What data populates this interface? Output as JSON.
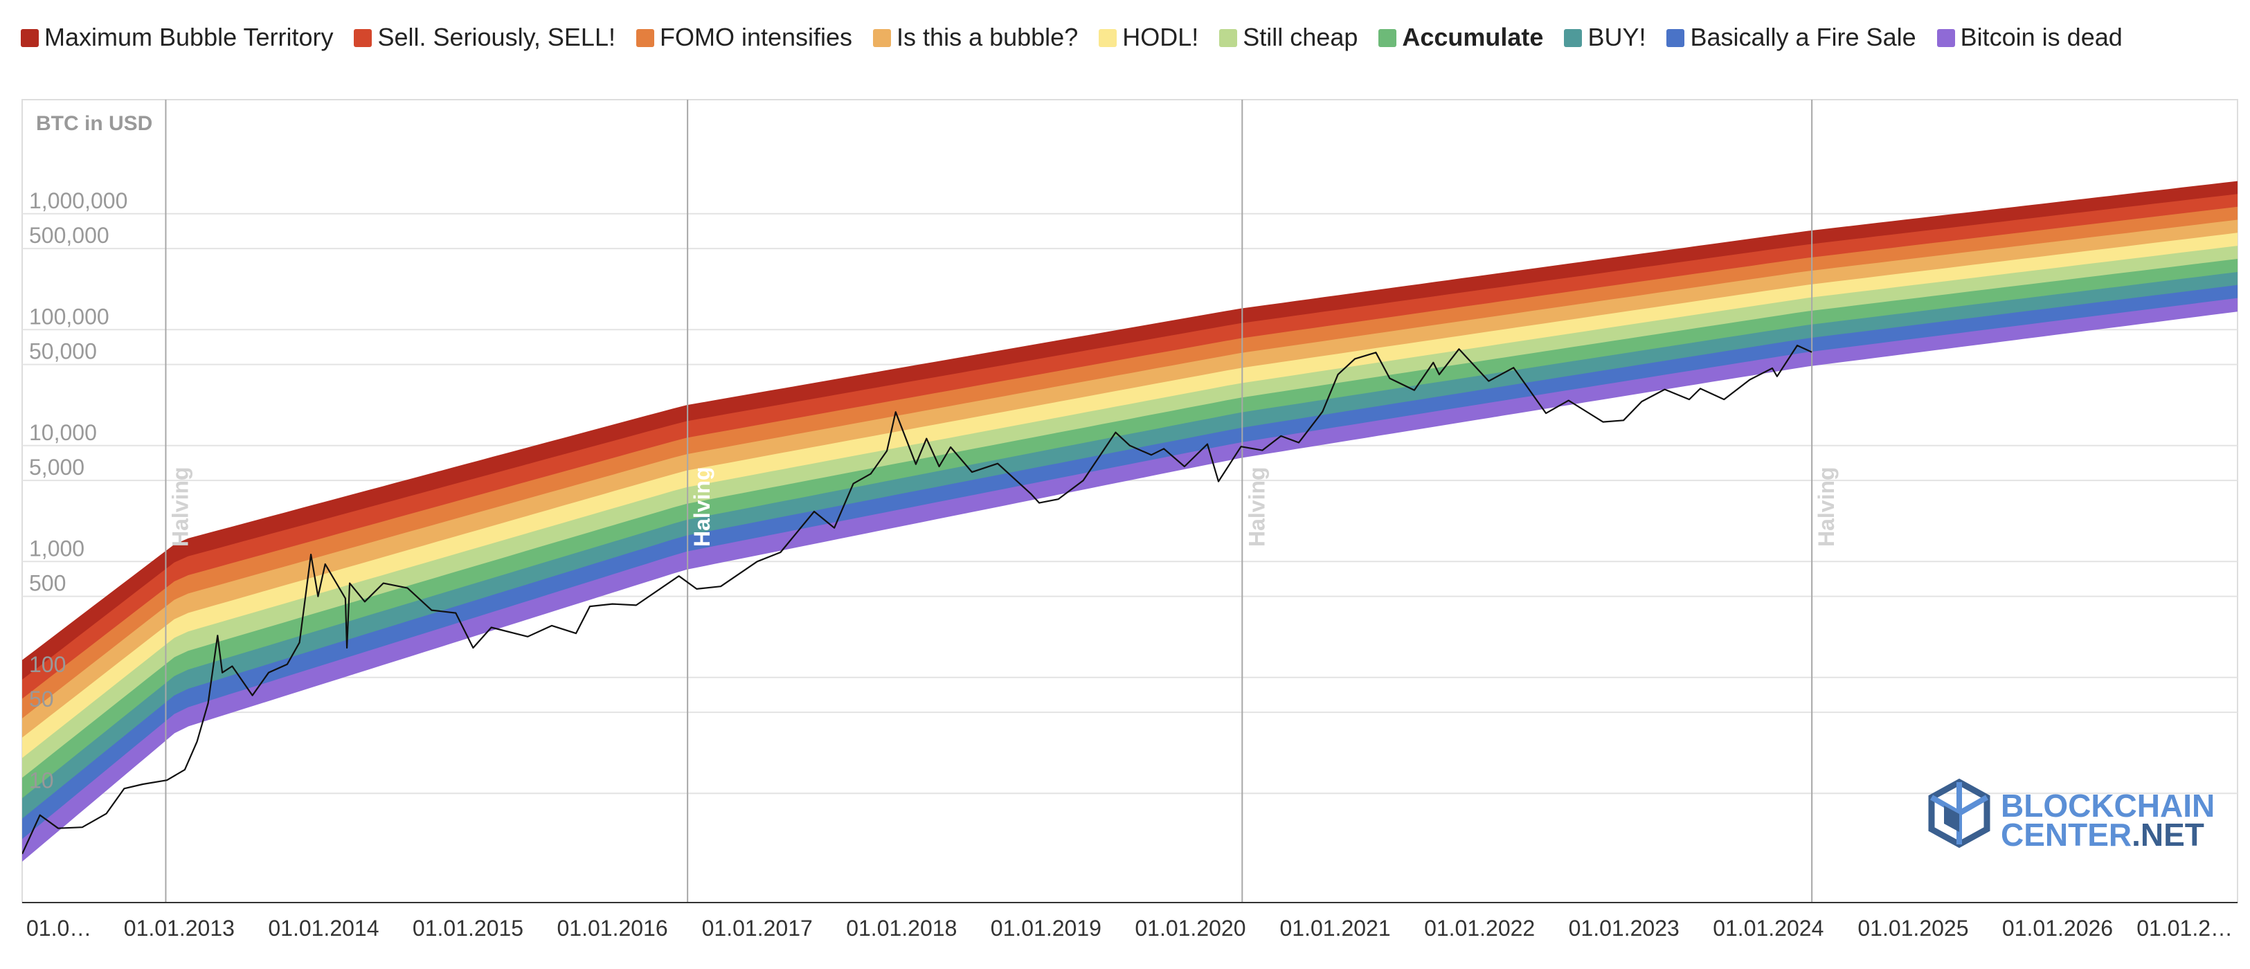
{
  "chart_data": {
    "type": "area",
    "title": "",
    "ylabel": "BTC in USD",
    "y_scale": "log",
    "x_range": [
      "2011-12-01",
      "2027-04-01"
    ],
    "y_ticks": [
      {
        "value": 10,
        "label": "10"
      },
      {
        "value": 50,
        "label": "50"
      },
      {
        "value": 100,
        "label": "100"
      },
      {
        "value": 500,
        "label": "500"
      },
      {
        "value": 1000,
        "label": "1,000"
      },
      {
        "value": 5000,
        "label": "5,000"
      },
      {
        "value": 10000,
        "label": "10,000"
      },
      {
        "value": 50000,
        "label": "50,000"
      },
      {
        "value": 100000,
        "label": "100,000"
      },
      {
        "value": 500000,
        "label": "500,000"
      },
      {
        "value": 1000000,
        "label": "1,000,000"
      }
    ],
    "x_ticks": [
      {
        "date": "2012-01-01",
        "label": "01.0…"
      },
      {
        "date": "2013-01-01",
        "label": "01.01.2013"
      },
      {
        "date": "2014-01-01",
        "label": "01.01.2014"
      },
      {
        "date": "2015-01-01",
        "label": "01.01.2015"
      },
      {
        "date": "2016-01-01",
        "label": "01.01.2016"
      },
      {
        "date": "2017-01-01",
        "label": "01.01.2017"
      },
      {
        "date": "2018-01-01",
        "label": "01.01.2018"
      },
      {
        "date": "2019-01-01",
        "label": "01.01.2019"
      },
      {
        "date": "2020-01-01",
        "label": "01.01.2020"
      },
      {
        "date": "2021-01-01",
        "label": "01.01.2021"
      },
      {
        "date": "2022-01-01",
        "label": "01.01.2022"
      },
      {
        "date": "2023-01-01",
        "label": "01.01.2023"
      },
      {
        "date": "2024-01-01",
        "label": "01.01.2024"
      },
      {
        "date": "2025-01-01",
        "label": "01.01.2025"
      },
      {
        "date": "2026-01-01",
        "label": "01.01.2026"
      },
      {
        "date": "2027-01-01",
        "label": "01.01.2…"
      }
    ],
    "bands": [
      {
        "name": "Maximum Bubble Territory",
        "color": "#b22a1e",
        "bold": false
      },
      {
        "name": "Sell. Seriously, SELL!",
        "color": "#d4472c",
        "bold": false
      },
      {
        "name": "FOMO intensifies",
        "color": "#e47f3e",
        "bold": false
      },
      {
        "name": "Is this a bubble?",
        "color": "#edb060",
        "bold": false
      },
      {
        "name": "HODL!",
        "color": "#fbe88f",
        "bold": false
      },
      {
        "name": "Still cheap",
        "color": "#bcd98f",
        "bold": false
      },
      {
        "name": "Accumulate",
        "color": "#6dba78",
        "bold": true
      },
      {
        "name": "BUY!",
        "color": "#4f9a9a",
        "bold": false
      },
      {
        "name": "Basically a Fire Sale",
        "color": "#4a73c7",
        "bold": false
      },
      {
        "name": "Bitcoin is dead",
        "color": "#8f6ad6",
        "bold": false
      }
    ],
    "band_boundaries": [
      {
        "date": "2011-12-01",
        "values": [
          140,
          95,
          65,
          44,
          30,
          20,
          13.5,
          9,
          6,
          4,
          2.6
        ]
      },
      {
        "date": "2013-01-01",
        "values": [
          1500,
          1050,
          720,
          500,
          340,
          235,
          160,
          110,
          75,
          52,
          36
        ]
      },
      {
        "date": "2016-07-01",
        "values": [
          22000,
          16000,
          11500,
          8300,
          6000,
          4300,
          3100,
          2250,
          1650,
          1200,
          850
        ]
      },
      {
        "date": "2020-05-01",
        "values": [
          150000,
          112000,
          83000,
          62000,
          46000,
          34000,
          25500,
          19000,
          14000,
          10500,
          7800
        ]
      },
      {
        "date": "2024-04-01",
        "values": [
          700000,
          535000,
          410000,
          315000,
          240000,
          185000,
          142000,
          108000,
          83000,
          63000,
          48000
        ]
      },
      {
        "date": "2027-04-01",
        "values": [
          1900000,
          1470000,
          1140000,
          880000,
          680000,
          525000,
          405000,
          312000,
          241000,
          186000,
          144000
        ]
      }
    ],
    "halvings": [
      {
        "date": "2012-11-28",
        "label": "Halving"
      },
      {
        "date": "2016-07-09",
        "label": "Halving"
      },
      {
        "date": "2020-05-11",
        "label": "Halving"
      },
      {
        "date": "2024-04-20",
        "label": "Halving"
      }
    ],
    "series": [
      {
        "name": "BTC price",
        "color": "#111111",
        "points": [
          [
            "2011-12-01",
            3.0
          ],
          [
            "2012-01-15",
            6.5
          ],
          [
            "2012-03-01",
            5.0
          ],
          [
            "2012-05-01",
            5.1
          ],
          [
            "2012-07-01",
            6.7
          ],
          [
            "2012-08-15",
            11
          ],
          [
            "2012-10-01",
            12
          ],
          [
            "2012-12-01",
            13
          ],
          [
            "2013-01-15",
            16
          ],
          [
            "2013-02-15",
            28
          ],
          [
            "2013-03-15",
            60
          ],
          [
            "2013-04-08",
            230
          ],
          [
            "2013-04-20",
            110
          ],
          [
            "2013-05-15",
            125
          ],
          [
            "2013-07-05",
            70
          ],
          [
            "2013-08-15",
            110
          ],
          [
            "2013-10-01",
            130
          ],
          [
            "2013-11-01",
            200
          ],
          [
            "2013-11-30",
            1150
          ],
          [
            "2013-12-18",
            500
          ],
          [
            "2014-01-05",
            950
          ],
          [
            "2014-02-25",
            480
          ],
          [
            "2014-03-01",
            180
          ],
          [
            "2014-03-08",
            650
          ],
          [
            "2014-04-15",
            450
          ],
          [
            "2014-06-01",
            650
          ],
          [
            "2014-08-01",
            590
          ],
          [
            "2014-10-01",
            380
          ],
          [
            "2014-12-01",
            360
          ],
          [
            "2015-01-14",
            180
          ],
          [
            "2015-03-01",
            270
          ],
          [
            "2015-06-01",
            225
          ],
          [
            "2015-08-01",
            280
          ],
          [
            "2015-10-01",
            240
          ],
          [
            "2015-11-05",
            410
          ],
          [
            "2016-01-01",
            430
          ],
          [
            "2016-03-01",
            420
          ],
          [
            "2016-06-17",
            750
          ],
          [
            "2016-08-01",
            580
          ],
          [
            "2016-10-01",
            610
          ],
          [
            "2017-01-01",
            1000
          ],
          [
            "2017-03-01",
            1200
          ],
          [
            "2017-05-25",
            2700
          ],
          [
            "2017-07-15",
            1950
          ],
          [
            "2017-09-01",
            4700
          ],
          [
            "2017-10-15",
            5700
          ],
          [
            "2017-11-25",
            9000
          ],
          [
            "2017-12-17",
            19500
          ],
          [
            "2018-02-06",
            6900
          ],
          [
            "2018-03-05",
            11500
          ],
          [
            "2018-04-06",
            6600
          ],
          [
            "2018-05-05",
            9700
          ],
          [
            "2018-06-28",
            5900
          ],
          [
            "2018-09-01",
            7000
          ],
          [
            "2018-11-25",
            3800
          ],
          [
            "2018-12-15",
            3200
          ],
          [
            "2019-02-01",
            3450
          ],
          [
            "2019-04-05",
            5000
          ],
          [
            "2019-06-26",
            13000
          ],
          [
            "2019-08-01",
            10000
          ],
          [
            "2019-09-24",
            8300
          ],
          [
            "2019-10-26",
            9400
          ],
          [
            "2019-12-17",
            6600
          ],
          [
            "2020-02-13",
            10300
          ],
          [
            "2020-03-12",
            4900
          ],
          [
            "2020-05-08",
            9800
          ],
          [
            "2020-07-01",
            9100
          ],
          [
            "2020-08-17",
            12100
          ],
          [
            "2020-10-01",
            10600
          ],
          [
            "2020-11-30",
            19600
          ],
          [
            "2021-01-08",
            41000
          ],
          [
            "2021-02-20",
            56000
          ],
          [
            "2021-04-14",
            63500
          ],
          [
            "2021-05-19",
            38000
          ],
          [
            "2021-07-20",
            30000
          ],
          [
            "2021-09-06",
            52000
          ],
          [
            "2021-09-21",
            41000
          ],
          [
            "2021-11-10",
            68000
          ],
          [
            "2022-01-24",
            36000
          ],
          [
            "2022-03-28",
            47000
          ],
          [
            "2022-06-18",
            19000
          ],
          [
            "2022-08-14",
            24500
          ],
          [
            "2022-11-09",
            16000
          ],
          [
            "2022-12-31",
            16500
          ],
          [
            "2023-02-15",
            24000
          ],
          [
            "2023-04-14",
            30500
          ],
          [
            "2023-06-15",
            25000
          ],
          [
            "2023-07-13",
            31000
          ],
          [
            "2023-09-11",
            25000
          ],
          [
            "2023-11-15",
            37000
          ],
          [
            "2024-01-11",
            46500
          ],
          [
            "2024-01-23",
            39500
          ],
          [
            "2024-03-14",
            73000
          ],
          [
            "2024-04-20",
            64000
          ]
        ]
      }
    ],
    "legend_position": "top",
    "grid": true,
    "watermark": {
      "line1": "BLOCKCHAIN",
      "line2": "CENTER",
      "line2_suffix": ".NET"
    }
  }
}
